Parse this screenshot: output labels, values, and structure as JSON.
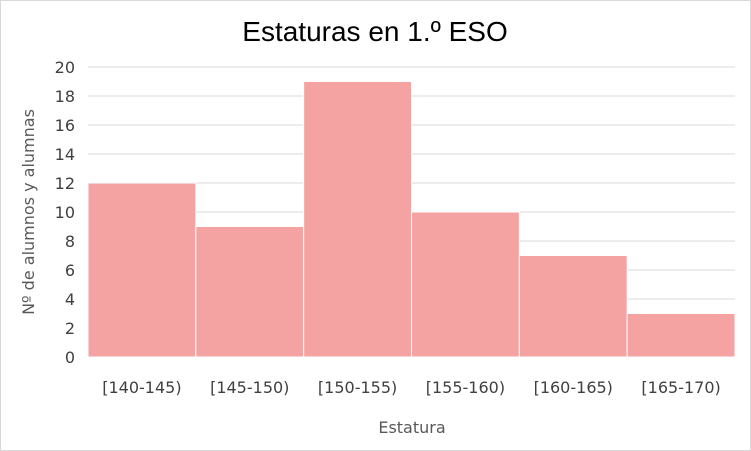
{
  "chart_data": {
    "type": "bar",
    "title": "Estaturas en 1.º ESO",
    "xlabel": "Estatura",
    "ylabel": "Nº de alumnos y alumnas",
    "categories": [
      "[140-145)",
      "[145-150)",
      "[150-155)",
      "[155-160)",
      "[160-165)",
      "[165-170)"
    ],
    "values": [
      12,
      9,
      19,
      10,
      7,
      3
    ],
    "ylim": [
      0,
      20
    ],
    "yticks": [
      0,
      2,
      4,
      6,
      8,
      10,
      12,
      14,
      16,
      18,
      20
    ],
    "grid": true,
    "legend": "none",
    "colors": {
      "bar_fill": "#f4a2a2",
      "bar_stroke": "#ffffff",
      "grid": "#d9d9d9"
    }
  }
}
